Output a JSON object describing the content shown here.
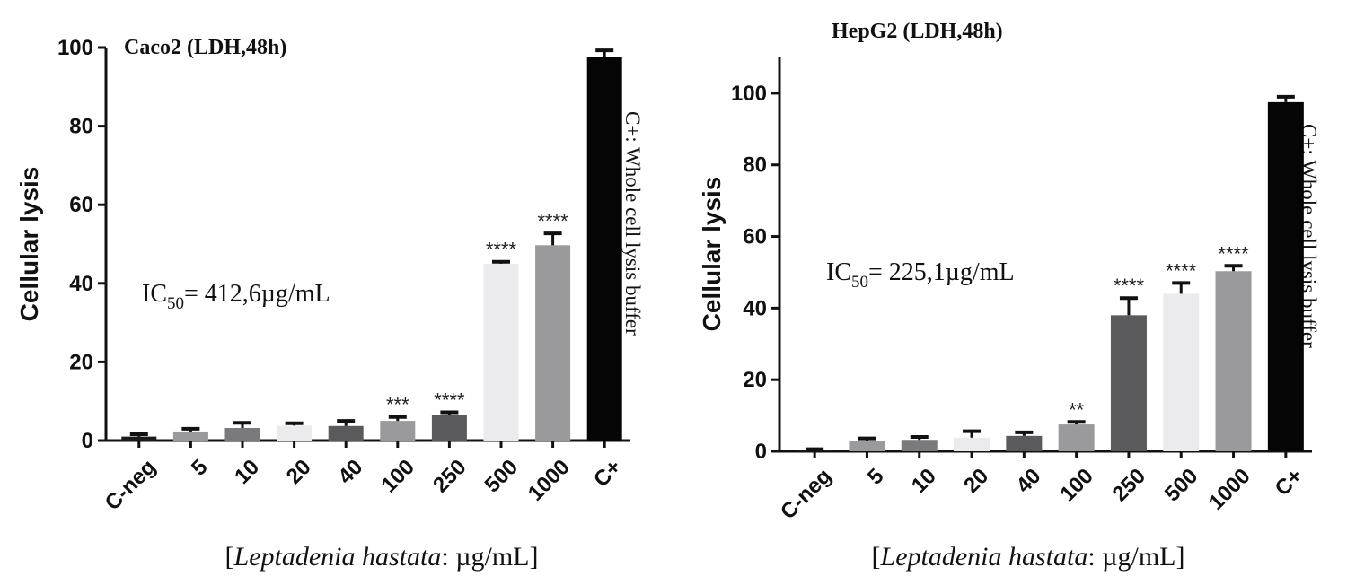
{
  "chart_data": [
    {
      "type": "bar",
      "title": "Caco2 (LDH,48h)",
      "ylabel": "Cellular lysis",
      "xlabel_bracket_open": "[",
      "xlabel_italic": "Leptadenia hastata",
      "xlabel_rest": ": µg/mL]",
      "ic50_prefix": "IC",
      "ic50_subscript": "50",
      "ic50_value": "= 412,6µg/mL",
      "side_note": "C+: Whole cell lysis buffer",
      "ylim": [
        0,
        100
      ],
      "yticks": [
        "0",
        "20",
        "40",
        "60",
        "80",
        "100"
      ],
      "categories": [
        "C-neg",
        "5",
        "10",
        "20",
        "40",
        "100",
        "250",
        "500",
        "1000",
        "C+"
      ],
      "values": [
        1.0,
        2.3,
        3.2,
        3.8,
        3.7,
        5.0,
        6.5,
        45.0,
        49.7,
        97.5
      ],
      "errors": [
        0.6,
        0.7,
        1.3,
        0.6,
        1.3,
        1.0,
        0.7,
        0.5,
        3.0,
        1.8
      ],
      "significance": [
        "",
        "",
        "",
        "",
        "",
        "***",
        "****",
        "****",
        "****",
        ""
      ],
      "colors": [
        "#1a1a1a",
        "#9a9a9c",
        "#7a7a7c",
        "#ebebed",
        "#5a5a5c",
        "#9a9a9c",
        "#5a5a5c",
        "#ebebed",
        "#9a9a9c",
        "#050505"
      ]
    },
    {
      "type": "bar",
      "title": "HepG2 (LDH,48h)",
      "ylabel": "Cellular lysis",
      "xlabel_bracket_open": "[",
      "xlabel_italic": "Leptadenia hastata",
      "xlabel_rest": ": µg/mL]",
      "ic50_prefix": "IC",
      "ic50_subscript": "50",
      "ic50_value": "= 225,1µg/mL",
      "side_note": "C+: Whole cell lysis buffer",
      "ylim": [
        0,
        110
      ],
      "yticks": [
        "0",
        "20",
        "40",
        "60",
        "80",
        "100"
      ],
      "categories": [
        "C-neg",
        "5",
        "10",
        "20",
        "40",
        "100",
        "250",
        "500",
        "1000",
        "C+"
      ],
      "values": [
        0.3,
        2.8,
        3.2,
        3.8,
        4.3,
        7.5,
        38.0,
        44.0,
        50.3,
        97.5
      ],
      "errors": [
        0.3,
        0.8,
        0.8,
        1.8,
        1.0,
        0.7,
        4.8,
        3.0,
        1.5,
        1.5
      ],
      "significance": [
        "",
        "",
        "",
        "",
        "",
        "**",
        "****",
        "****",
        "****",
        ""
      ],
      "colors": [
        "#1a1a1a",
        "#9a9a9c",
        "#7a7a7c",
        "#ebebed",
        "#5a5a5c",
        "#9a9a9c",
        "#5a5a5c",
        "#ebebed",
        "#9a9a9c",
        "#050505"
      ]
    }
  ]
}
